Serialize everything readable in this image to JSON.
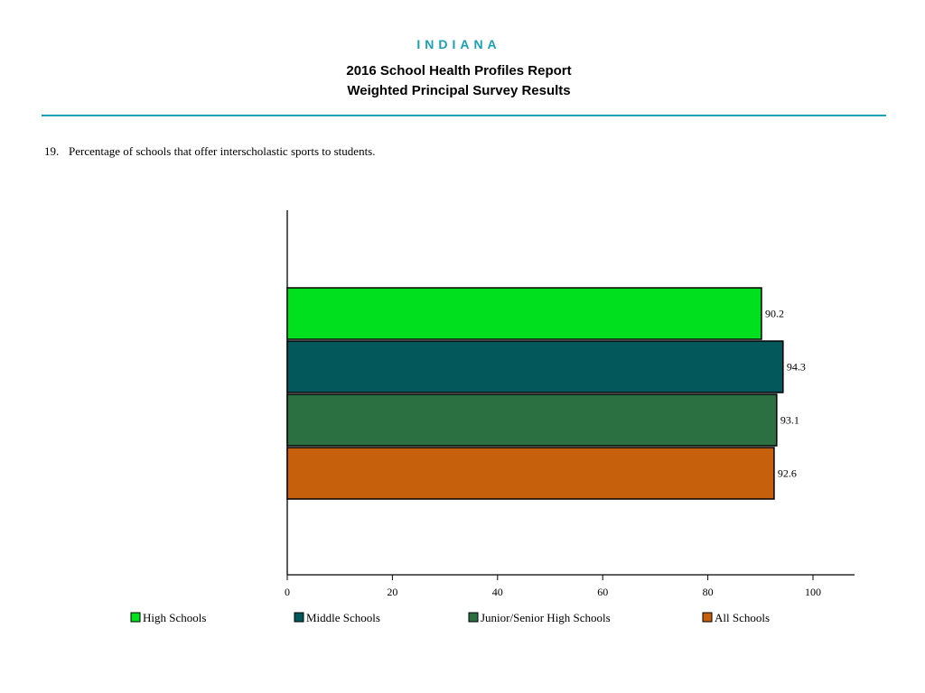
{
  "header": {
    "state": "INDIANA",
    "title_line1": "2016 School Health Profiles Report",
    "title_line2": "Weighted Principal Survey Results",
    "accent_color": "#1aa0b4"
  },
  "question": {
    "number": "19.",
    "text": "Percentage of schools that offer interscholastic sports to students."
  },
  "chart_data": {
    "type": "bar",
    "orientation": "horizontal",
    "series": [
      {
        "name": "High Schools",
        "value": 90.2,
        "label": "90.2",
        "color": "#00e01e"
      },
      {
        "name": "Middle Schools",
        "value": 94.3,
        "label": "94.3",
        "color": "#02585a"
      },
      {
        "name": "Junior/Senior High Schools",
        "value": 93.1,
        "label": "93.1",
        "color": "#2a7040"
      },
      {
        "name": "All Schools",
        "value": 92.6,
        "label": "92.6",
        "color": "#c6600c"
      }
    ],
    "xlim": [
      0,
      108
    ],
    "xticks": [
      0,
      20,
      40,
      60,
      80,
      100
    ],
    "grid": false,
    "legend_position": "bottom"
  }
}
